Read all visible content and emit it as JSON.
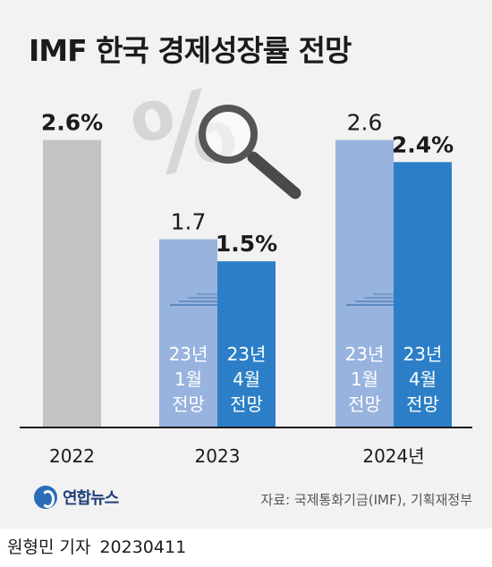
{
  "title": "IMF 한국 경제성장률 전망",
  "source": "자료: 국제통화기금(IMF), 기획재정부",
  "logo_text": "연합뉴스",
  "byline": {
    "reporter": "원형민 기자",
    "date": "20230411"
  },
  "icons": [
    "percent-icon",
    "magnifier-icon",
    "arrow-right-icon",
    "yonhap-logo-icon"
  ],
  "colors": {
    "gray": "#c3c3c3",
    "light_blue": "#97b3de",
    "blue": "#2c7fc7",
    "background": "#f2f2f2"
  },
  "chart_data": {
    "type": "bar",
    "categories": [
      "2022",
      "2023",
      "2024년"
    ],
    "ylim": [
      0,
      3.1
    ],
    "series": [
      {
        "key": "actual",
        "values": [
          2.6,
          null,
          null
        ],
        "labels": [
          "2.6%",
          "",
          ""
        ]
      },
      {
        "key": "jan",
        "values": [
          null,
          1.7,
          2.6
        ],
        "labels": [
          "",
          "1.7",
          "2.6"
        ],
        "inner_text": [
          "23년",
          "1월",
          "전망"
        ]
      },
      {
        "key": "apr",
        "values": [
          null,
          1.5,
          2.4
        ],
        "labels": [
          "",
          "1.5%",
          "2.4%"
        ],
        "inner_text": [
          "23년",
          "4월",
          "전망"
        ]
      }
    ]
  }
}
